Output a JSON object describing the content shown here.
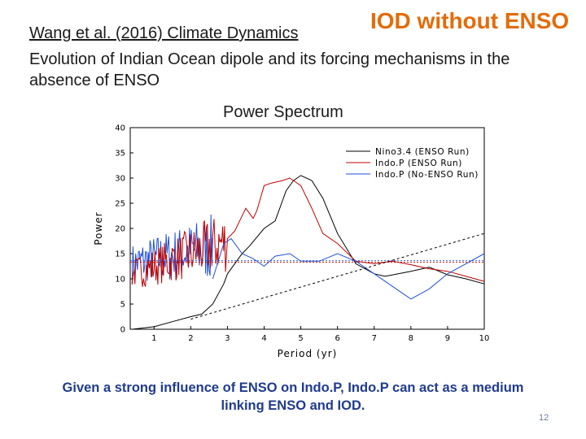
{
  "slide": {
    "citation": "Wang et al. (2016) Climate Dynamics",
    "headline": "IOD without ENSO",
    "subtitle": "Evolution of Indian Ocean dipole and its forcing mechanisms in the absence of ENSO",
    "caption": "Given a strong influence of ENSO on Indo.P, Indo.P can act as a medium linking ENSO and IOD.",
    "page_number": "12",
    "colors": {
      "headline": "#e36c0a",
      "caption": "#1f3b8f"
    }
  },
  "chart_data": {
    "type": "line",
    "title": "Power Spectrum",
    "xlabel": "Period (yr)",
    "ylabel": "Power",
    "xlim": [
      0.35,
      10
    ],
    "ylim": [
      0,
      40
    ],
    "xticks": [
      1,
      2,
      3,
      4,
      5,
      6,
      7,
      8,
      9,
      10
    ],
    "yticks": [
      0,
      5,
      10,
      15,
      20,
      25,
      30,
      35,
      40
    ],
    "legend_position": "top-right",
    "series": [
      {
        "name": "Nino3.4 (ENSO Run)",
        "color": "#000000",
        "style": "solid",
        "x": [
          0.4,
          1.0,
          1.5,
          2.0,
          2.3,
          2.6,
          2.9,
          3.0,
          3.1,
          3.4,
          3.6,
          4.0,
          4.3,
          4.6,
          4.8,
          5.0,
          5.3,
          5.6,
          6.0,
          6.5,
          7.0,
          7.3,
          8.0,
          8.5,
          9.0,
          9.5,
          10.0
        ],
        "y": [
          0,
          0.5,
          1.5,
          2.5,
          3,
          5,
          9,
          11,
          12,
          15,
          16.5,
          20,
          21.5,
          27.5,
          29.5,
          30.5,
          29.5,
          26,
          19,
          13,
          11,
          10.5,
          11.5,
          12.3,
          10.8,
          10,
          9
        ]
      },
      {
        "name": "Indo.P (ENSO Run)",
        "color": "#c00000",
        "style": "solid",
        "x": [
          3.0,
          3.2,
          3.5,
          3.7,
          3.8,
          4.0,
          4.2,
          4.5,
          4.7,
          4.8,
          5.0,
          5.3,
          5.6,
          6.0,
          6.5,
          7.0,
          7.5,
          8.0,
          8.5,
          9.0,
          9.5,
          10.0
        ],
        "y": [
          18,
          19.5,
          24,
          22,
          23.5,
          28.5,
          29,
          29.5,
          30,
          29.5,
          28.5,
          24,
          19,
          17,
          13.5,
          13,
          13.5,
          12.8,
          12,
          11.5,
          10.5,
          9.5
        ]
      },
      {
        "name": "Indo.P (No-ENSO Run)",
        "color": "#1f4fd6",
        "style": "solid",
        "x": [
          2.6,
          2.9,
          3.1,
          3.4,
          3.7,
          4.0,
          4.3,
          4.7,
          5.0,
          5.5,
          6.0,
          6.5,
          7.0,
          7.5,
          8.0,
          8.5,
          9.0,
          9.5,
          10.0
        ],
        "y": [
          10,
          17,
          18,
          15,
          14,
          12.5,
          14.5,
          15,
          13.5,
          13.5,
          15,
          13.5,
          11,
          8.5,
          6,
          8,
          11,
          13,
          15
        ]
      },
      {
        "name": "",
        "color": "#000000",
        "style": "dashed",
        "x": [
          2.0,
          10.0
        ],
        "y": [
          2,
          19
        ]
      }
    ]
  }
}
